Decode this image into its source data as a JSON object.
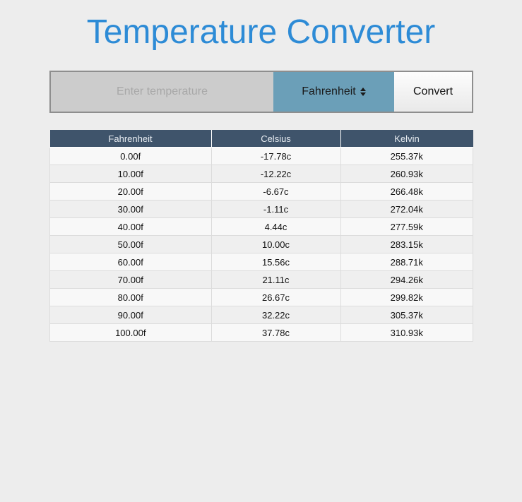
{
  "header": {
    "title": "Temperature Converter"
  },
  "converter": {
    "input_placeholder": "Enter temperature",
    "input_value": "",
    "unit_selected": "Fahrenheit",
    "convert_label": "Convert"
  },
  "table": {
    "headers": [
      "Fahrenheit",
      "Celsius",
      "Kelvin"
    ],
    "rows": [
      [
        "0.00f",
        "-17.78c",
        "255.37k"
      ],
      [
        "10.00f",
        "-12.22c",
        "260.93k"
      ],
      [
        "20.00f",
        "-6.67c",
        "266.48k"
      ],
      [
        "30.00f",
        "-1.11c",
        "272.04k"
      ],
      [
        "40.00f",
        "4.44c",
        "277.59k"
      ],
      [
        "50.00f",
        "10.00c",
        "283.15k"
      ],
      [
        "60.00f",
        "15.56c",
        "288.71k"
      ],
      [
        "70.00f",
        "21.11c",
        "294.26k"
      ],
      [
        "80.00f",
        "26.67c",
        "299.82k"
      ],
      [
        "90.00f",
        "32.22c",
        "305.37k"
      ],
      [
        "100.00f",
        "37.78c",
        "310.93k"
      ]
    ]
  },
  "colors": {
    "title": "#2d8bd6",
    "select_bg": "#6b9fb8",
    "table_header_bg": "#3f546b",
    "page_bg": "#ededed"
  },
  "icons": {
    "select_arrows": "up-down-arrows-icon"
  }
}
